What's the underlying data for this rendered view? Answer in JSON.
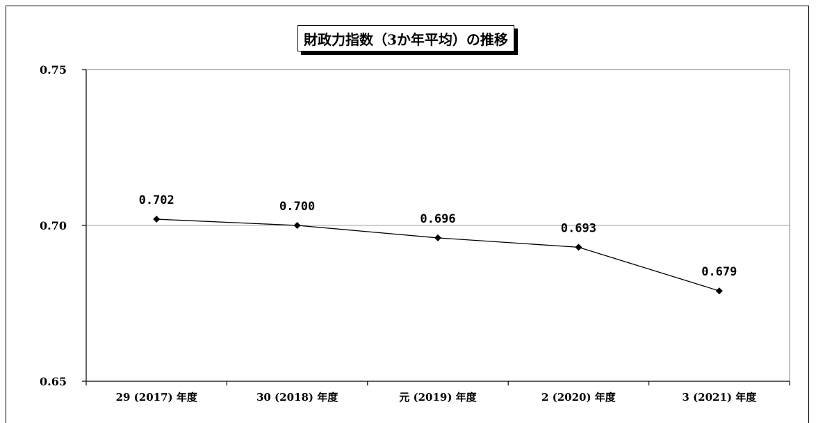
{
  "chart_data": {
    "type": "line",
    "title": "財政力指数（3か年平均）の推移",
    "categories": [
      "29 (2017) 年度",
      "30 (2018) 年度",
      "元 (2019) 年度",
      "2 (2020) 年度",
      "3 (2021) 年度"
    ],
    "series": [
      {
        "values": [
          0.702,
          0.7,
          0.696,
          0.693,
          0.679
        ],
        "labels": [
          "0.702",
          "0.700",
          "0.696",
          "0.693",
          "0.679"
        ]
      }
    ],
    "ylim": [
      0.65,
      0.75
    ],
    "yticks": [
      "0.65",
      "0.70",
      "0.75"
    ],
    "ytick_values": [
      0.65,
      0.7,
      0.75
    ],
    "gridline_values": [
      0.7
    ],
    "grid": true,
    "legend": "none",
    "line_color": "#000000",
    "marker": "diamond"
  }
}
